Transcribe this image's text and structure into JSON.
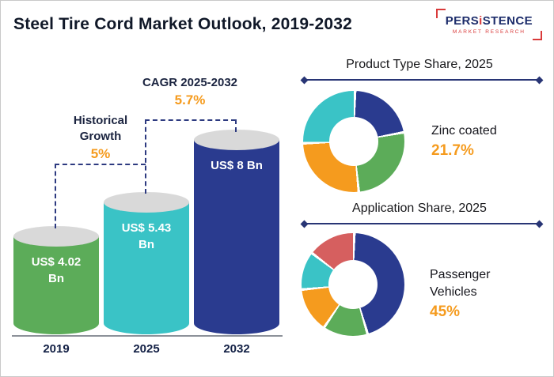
{
  "header": {
    "title": "Steel Tire Cord Market Outlook, 2019-2032",
    "logo": {
      "brand": {
        "pre": "PERS",
        "i": "i",
        "post": "STENCE"
      },
      "tagline": "MARKET RESEARCH"
    }
  },
  "palette": {
    "navy": "#2A3B8F",
    "green": "#5CAC59",
    "teal": "#3AC3C6",
    "orange": "#F59B1E",
    "red": "#D65F5F",
    "accent_value": "#F59B1E",
    "dashed_line": "#2D3A80"
  },
  "chart_data": [
    {
      "type": "bar",
      "title": "Steel Tire Cord Market Outlook, 2019-2032",
      "categories": [
        "2019",
        "2025",
        "2032"
      ],
      "values": [
        4.02,
        5.43,
        8
      ],
      "value_labels": [
        "US$ 4.02 Bn",
        "US$ 5.43 Bn",
        "US$ 8 Bn"
      ],
      "unit": "US$ Bn",
      "ylim": [
        0,
        8
      ],
      "bar_colors": [
        "#5CAC59",
        "#3AC3C6",
        "#2A3B8F"
      ],
      "annotations": [
        {
          "label": "Historical Growth",
          "value": "5%",
          "from": "2019",
          "to": "2025"
        },
        {
          "label": "CAGR 2025-2032",
          "value": "5.7%",
          "from": "2025",
          "to": "2032"
        }
      ]
    },
    {
      "type": "pie",
      "title": "Product Type Share, 2025",
      "donut": true,
      "highlight": {
        "label": "Zinc coated",
        "value": "21.7%"
      },
      "segments": [
        {
          "label": "Zinc coated",
          "value": 21.7,
          "color": "#2A3B8F"
        },
        {
          "value": 26.3,
          "color": "#5CAC59"
        },
        {
          "value": 26,
          "color": "#F59B1E"
        },
        {
          "value": 26,
          "color": "#3AC3C6"
        }
      ]
    },
    {
      "type": "pie",
      "title": "Application Share, 2025",
      "donut": true,
      "highlight": {
        "label": "Passenger Vehicles",
        "value": "45%"
      },
      "segments": [
        {
          "label": "Passenger Vehicles",
          "value": 45,
          "color": "#2A3B8F"
        },
        {
          "value": 14,
          "color": "#5CAC59"
        },
        {
          "value": 14,
          "color": "#F59B1E"
        },
        {
          "value": 12,
          "color": "#3AC3C6"
        },
        {
          "value": 15,
          "color": "#D65F5F"
        }
      ]
    }
  ]
}
